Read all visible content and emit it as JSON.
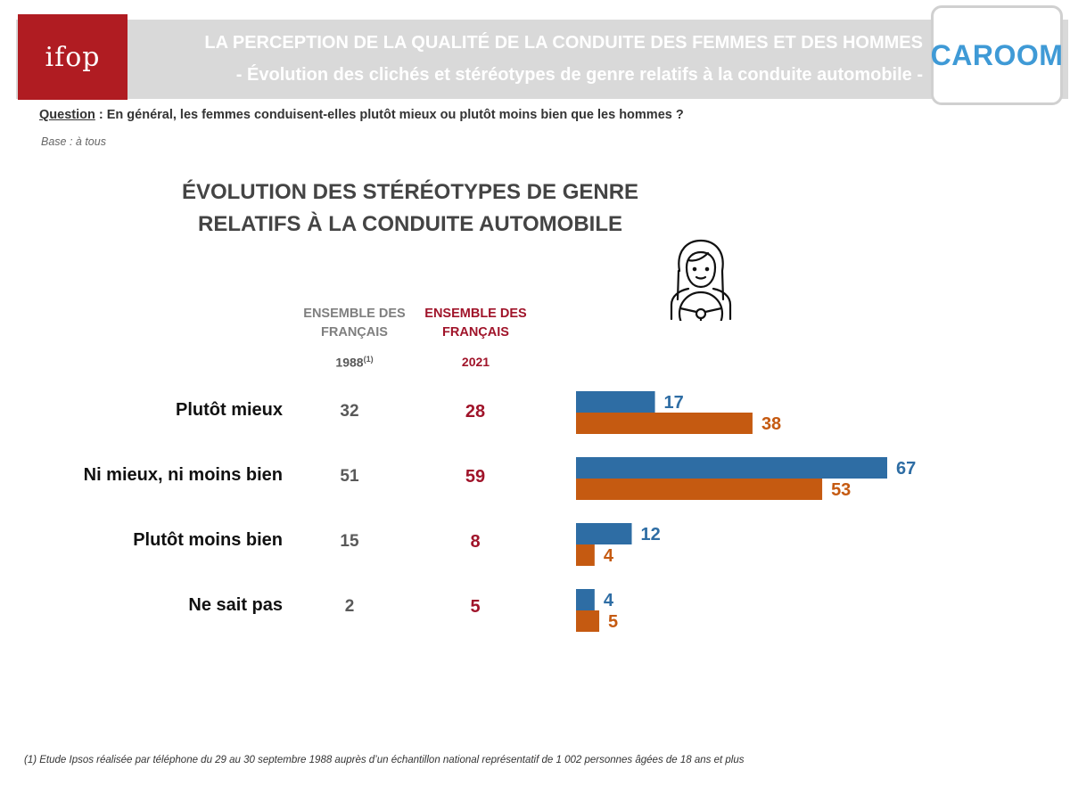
{
  "header": {
    "title_line1": "LA PERCEPTION DE LA QUALITÉ DE LA CONDUITE DES FEMMES ET DES HOMMES",
    "title_line2": "- Évolution des clichés et stéréotypes de genre relatifs à la conduite automobile -",
    "logo_left": "ifop",
    "logo_right": "CAROOM"
  },
  "question": {
    "label": "Question",
    "text": " : En général, les femmes conduisent-elles plutôt mieux ou plutôt moins bien que les hommes ?"
  },
  "base": "Base : à tous",
  "chart_title_line1": "ÉVOLUTION DES STÉRÉOTYPES DE GENRE",
  "chart_title_line2": "RELATIFS À LA CONDUITE AUTOMOBILE",
  "icon": "woman-driver-icon",
  "columns": {
    "c1988_line1": "ENSEMBLE DES",
    "c1988_line2": "FRANÇAIS",
    "c1988_year": "1988",
    "c1988_note": "(1)",
    "c2021_line1": "ENSEMBLE DES",
    "c2021_line2": "FRANÇAIS",
    "c2021_year": "2021"
  },
  "rows": [
    {
      "label": "Plutôt mieux",
      "v1988": "32",
      "v2021": "28"
    },
    {
      "label": "Ni mieux, ni moins bien",
      "v1988": "51",
      "v2021": "59"
    },
    {
      "label": "Plutôt moins bien",
      "v1988": "15",
      "v2021": "8"
    },
    {
      "label": "Ne sait pas",
      "v1988": "2",
      "v2021": "5"
    }
  ],
  "colors": {
    "blue_series": "#2e6da4",
    "orange_series": "#c55a11",
    "value_1988": "#595959",
    "value_2021": "#a0142a",
    "ifop_red": "#b01c22",
    "caroom_blue": "#3f9ad6"
  },
  "chart_data": {
    "type": "bar",
    "orientation": "horizontal",
    "categories": [
      "Plutôt mieux",
      "Ni mieux, ni moins bien",
      "Plutôt moins bien",
      "Ne sait pas"
    ],
    "series": [
      {
        "values": [
          17,
          67,
          12,
          4
        ],
        "color": "#2e6da4"
      },
      {
        "values": [
          38,
          53,
          4,
          5
        ],
        "color": "#c55a11"
      }
    ],
    "xlim": [
      0,
      67
    ],
    "grid": false,
    "legend": "none"
  },
  "footnote": "(1) Etude Ipsos réalisée par téléphone du 29 au 30 septembre 1988 auprès d’un échantillon national représentatif de 1 002 personnes âgées de 18 ans et plus"
}
